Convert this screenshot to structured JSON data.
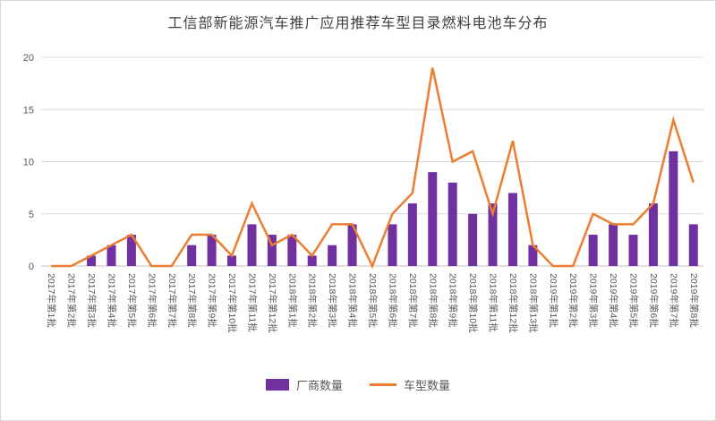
{
  "chart_data": {
    "type": "combo",
    "title": "工信部新能源汽车推广应用推荐车型目录燃料电池车分布",
    "categories": [
      "2017年第1批",
      "2017年第2批",
      "2017年第3批",
      "2017年第4批",
      "2017年第5批",
      "2017年第6批",
      "2017年第7批",
      "2017年第8批",
      "2017年第9批",
      "2017年第10批",
      "2017年第11批",
      "2017年第12批",
      "2018年第1批",
      "2018年第2批",
      "2018年第3批",
      "2018年第4批",
      "2018年第5批",
      "2018年第6批",
      "2018年第7批",
      "2018年第8批",
      "2018年第9批",
      "2018年第10批",
      "2018年第11批",
      "2018年第12批",
      "2018年第13批",
      "2019年第1批",
      "2019年第2批",
      "2019年第3批",
      "2019年第4批",
      "2019年第5批",
      "2019年第6批",
      "2019年第7批",
      "2019年第8批"
    ],
    "series": [
      {
        "name": "厂商数量",
        "type": "bar",
        "color": "#7030A0",
        "values": [
          0,
          0,
          1,
          2,
          3,
          0,
          0,
          2,
          3,
          1,
          4,
          3,
          3,
          1,
          2,
          4,
          0,
          4,
          6,
          9,
          8,
          5,
          6,
          7,
          2,
          0,
          0,
          3,
          4,
          3,
          6,
          11,
          4
        ]
      },
      {
        "name": "车型数量",
        "type": "line",
        "color": "#ED7D31",
        "values": [
          0,
          0,
          1,
          2,
          3,
          0,
          0,
          3,
          3,
          1,
          6,
          2,
          3,
          1,
          4,
          4,
          0,
          5,
          7,
          19,
          10,
          11,
          5,
          12,
          2,
          0,
          0,
          5,
          4,
          4,
          6,
          14,
          8
        ]
      }
    ],
    "xlabel": "",
    "ylabel": "",
    "ylim": [
      0,
      20
    ],
    "yticks": [
      0,
      5,
      10,
      15,
      20
    ],
    "grid": true,
    "legend_position": "bottom",
    "gridline_color": "#D9D9D9",
    "axis_text_color": "#595959"
  }
}
